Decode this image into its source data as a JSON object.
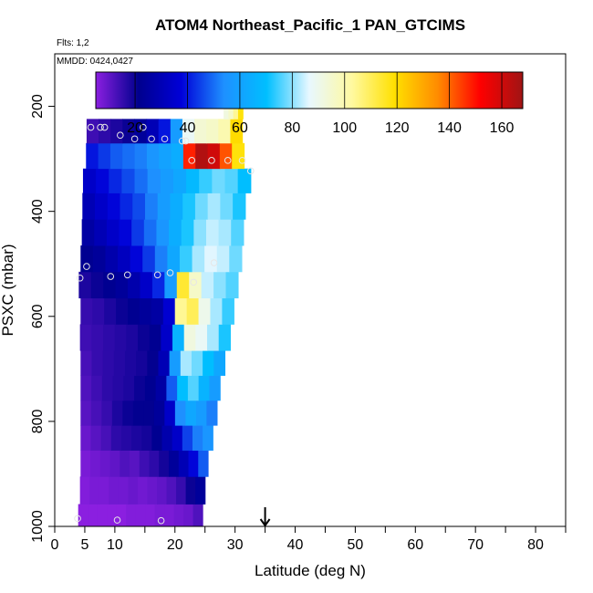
{
  "title": "ATOM4 Northeast_Pacific_1 PAN_GTCIMS",
  "flights_label": "Flts: 1,2",
  "mmdd_label": "MMDD: 0424,0427",
  "chart_data": {
    "type": "heatmap",
    "xlabel": "Latitude (deg N)",
    "ylabel": "PSXC (mbar)",
    "xlim": [
      0,
      85
    ],
    "ylim": [
      1000,
      100
    ],
    "x_ticks": [
      0,
      5,
      10,
      20,
      30,
      40,
      50,
      60,
      70,
      80
    ],
    "x_minor_ticks": [
      15,
      25,
      35,
      45,
      55,
      65,
      75,
      85
    ],
    "y_ticks": [
      200,
      400,
      600,
      800,
      1000
    ],
    "colorbar": {
      "range": [
        5,
        168
      ],
      "ticks": [
        20,
        40,
        60,
        80,
        100,
        120,
        140,
        160
      ],
      "colors": [
        "#8B1FE0",
        "#00008E",
        "#0000D8",
        "#1E90FF",
        "#00BFFF",
        "#E8F8FF",
        "#FFF9A0",
        "#FFE000",
        "#FF8C00",
        "#FF0000",
        "#A01414"
      ],
      "position": "top"
    },
    "marker_latitude": 35,
    "rows": [
      {
        "p": 985,
        "lat0": 3.9,
        "lat1": 24.6,
        "v": [
          5,
          5,
          5,
          5,
          5,
          6,
          6,
          6,
          7,
          7,
          8,
          9,
          12
        ]
      },
      {
        "p": 930,
        "lat0": 4.2,
        "lat1": 25.0,
        "v": [
          6,
          7,
          7,
          8,
          8,
          9,
          8,
          9,
          10,
          12,
          15,
          20,
          24
        ]
      },
      {
        "p": 880,
        "lat0": 4.3,
        "lat1": 25.5,
        "v": [
          7,
          8,
          9,
          10,
          12,
          11,
          14,
          16,
          19,
          24,
          30,
          38,
          48
        ]
      },
      {
        "p": 830,
        "lat0": 4.3,
        "lat1": 26.3,
        "v": [
          9,
          11,
          13,
          16,
          17,
          18,
          19,
          22,
          28,
          34,
          45,
          52,
          56
        ]
      },
      {
        "p": 785,
        "lat0": 4.3,
        "lat1": 27.0,
        "v": [
          11,
          13,
          15,
          18,
          20,
          21,
          21,
          24,
          34,
          54,
          62,
          58,
          52
        ]
      },
      {
        "p": 735,
        "lat0": 4.3,
        "lat1": 27.5,
        "v": [
          12,
          14,
          16,
          17,
          18,
          20,
          22,
          26,
          48,
          70,
          76,
          66,
          58
        ]
      },
      {
        "p": 690,
        "lat0": 4.3,
        "lat1": 28.3,
        "v": [
          13,
          15,
          16,
          17,
          18,
          19,
          21,
          30,
          58,
          82,
          78,
          70,
          62
        ]
      },
      {
        "p": 640,
        "lat0": 4.2,
        "lat1": 29.2,
        "v": [
          14,
          15,
          16,
          17,
          18,
          20,
          22,
          34,
          66,
          92,
          88,
          82,
          72
        ]
      },
      {
        "p": 590,
        "lat0": 4.3,
        "lat1": 29.8,
        "v": [
          15,
          16,
          18,
          20,
          22,
          24,
          26,
          36,
          104,
          110,
          90,
          82,
          74
        ]
      },
      {
        "p": 540,
        "lat0": 4.0,
        "lat1": 30.5,
        "v": [
          18,
          20,
          22,
          24,
          28,
          34,
          42,
          58,
          114,
          96,
          84,
          80,
          76
        ]
      },
      {
        "p": 490,
        "lat0": 4.3,
        "lat1": 31.1,
        "v": [
          22,
          24,
          28,
          32,
          38,
          44,
          52,
          62,
          74,
          82,
          86,
          84,
          78
        ]
      },
      {
        "p": 440,
        "lat0": 4.5,
        "lat1": 31.4,
        "v": [
          26,
          30,
          34,
          38,
          44,
          50,
          56,
          64,
          72,
          80,
          84,
          82,
          76
        ]
      },
      {
        "p": 390,
        "lat0": 4.6,
        "lat1": 31.7,
        "v": [
          30,
          34,
          38,
          42,
          46,
          52,
          58,
          64,
          72,
          78,
          82,
          78,
          72
        ]
      },
      {
        "p": 340,
        "lat0": 4.7,
        "lat1": 32.6,
        "v": [
          34,
          38,
          42,
          46,
          50,
          54,
          58,
          62,
          68,
          74,
          78,
          76,
          70
        ]
      },
      {
        "p": 297,
        "lat0": 5.2,
        "lat1": 31.5,
        "v": [
          40,
          44,
          48,
          50,
          52,
          56,
          60,
          64,
          148,
          165,
          160,
          142,
          118
        ]
      },
      {
        "p": 243,
        "lat0": 5.3,
        "lat1": 31.2,
        "v": [
          14,
          16,
          18,
          20,
          24,
          30,
          40,
          58,
          88,
          94,
          96,
          100,
          120
        ]
      },
      {
        "p": 205,
        "lat0": 28.1,
        "lat1": 31.3,
        "v": [
          92,
          96,
          104,
          118
        ]
      }
    ],
    "points": [
      [
        6,
        240
      ],
      [
        7.6,
        240
      ],
      [
        8.3,
        240
      ],
      [
        14.7,
        240
      ],
      [
        10.9,
        255
      ],
      [
        13.3,
        262
      ],
      [
        16.1,
        262
      ],
      [
        18.3,
        262
      ],
      [
        21.2,
        266
      ],
      [
        21.8,
        266
      ],
      [
        22.8,
        303
      ],
      [
        26.1,
        303
      ],
      [
        28.8,
        303
      ],
      [
        31.2,
        303
      ],
      [
        32.6,
        323
      ],
      [
        29.2,
        198
      ],
      [
        5.3,
        505
      ],
      [
        4.2,
        527
      ],
      [
        9.3,
        524
      ],
      [
        12.1,
        521
      ],
      [
        17.1,
        521
      ],
      [
        19.2,
        517
      ],
      [
        23.1,
        535
      ],
      [
        26.5,
        498
      ],
      [
        3.8,
        985
      ],
      [
        10.4,
        988
      ],
      [
        17.7,
        989
      ]
    ]
  }
}
